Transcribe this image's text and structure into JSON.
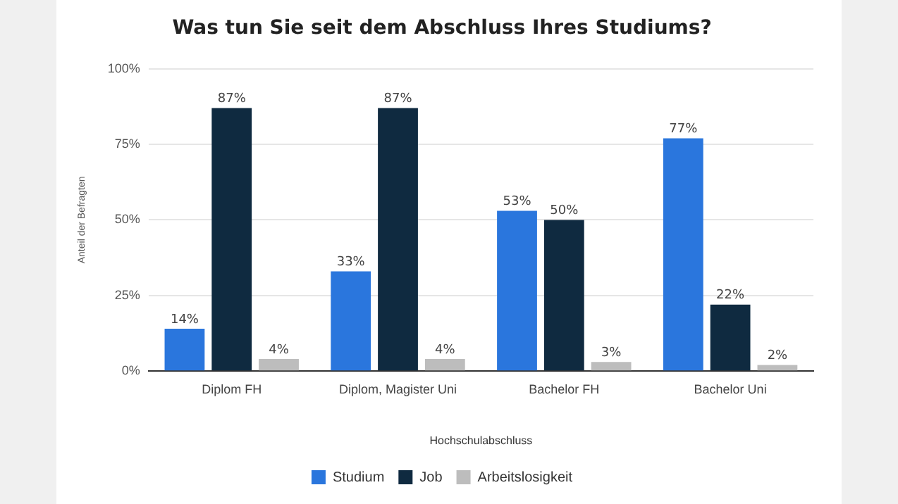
{
  "chart_data": {
    "type": "bar",
    "title": "Was tun Sie seit dem Abschluss Ihres Studiums?",
    "xlabel": "Hochschulabschluss",
    "ylabel": "Anteil der Befragten",
    "categories": [
      "Diplom FH",
      "Diplom, Magister Uni",
      "Bachelor FH",
      "Bachelor Uni"
    ],
    "series": [
      {
        "name": "Studium",
        "color": "#2a76dd",
        "values": [
          14,
          33,
          53,
          77
        ],
        "value_labels": [
          "14%",
          "33%",
          "53%",
          "77%"
        ]
      },
      {
        "name": "Job",
        "color": "#0f2a40",
        "values": [
          87,
          87,
          50,
          22
        ],
        "value_labels": [
          "87%",
          "87%",
          "50%",
          "22%"
        ]
      },
      {
        "name": "Arbeitslosigkeit",
        "color": "#bdbdbd",
        "values": [
          4,
          4,
          3,
          2
        ],
        "value_labels": [
          "4%",
          "4%",
          "3%",
          "2%"
        ]
      }
    ],
    "ylim": [
      0,
      100
    ],
    "yticks": [
      {
        "value": 0,
        "label": "0%"
      },
      {
        "value": 25,
        "label": "25%"
      },
      {
        "value": 50,
        "label": "50%"
      },
      {
        "value": 75,
        "label": "75%"
      },
      {
        "value": 100,
        "label": "100%"
      }
    ],
    "grid": "y",
    "legend": "bottom"
  }
}
